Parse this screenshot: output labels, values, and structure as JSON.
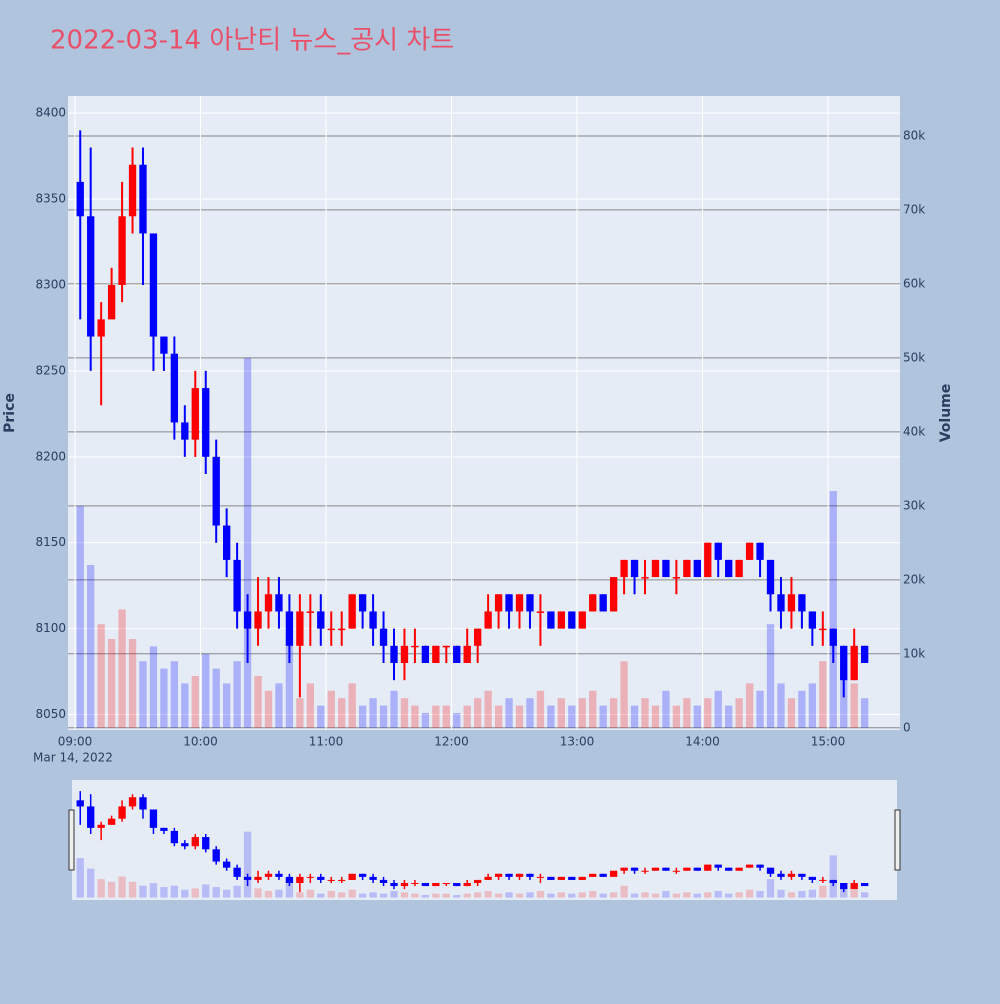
{
  "chart_data": {
    "type": "candlestick",
    "title": "2022-03-14 아난티 뉴스_공시 차트",
    "y_label": "Price",
    "y2_label": "Volume",
    "x_date_label": "Mar 14, 2022",
    "x": [
      "2022-03-14 09:00",
      "2022-03-14 09:05",
      "2022-03-14 09:10",
      "2022-03-14 09:15",
      "2022-03-14 09:20",
      "2022-03-14 09:25",
      "2022-03-14 09:30",
      "2022-03-14 09:35",
      "2022-03-14 09:40",
      "2022-03-14 09:45",
      "2022-03-14 09:50",
      "2022-03-14 09:55",
      "2022-03-14 10:00",
      "2022-03-14 10:05",
      "2022-03-14 10:10",
      "2022-03-14 10:15",
      "2022-03-14 10:20",
      "2022-03-14 10:25",
      "2022-03-14 10:30",
      "2022-03-14 10:35",
      "2022-03-14 10:40",
      "2022-03-14 10:45",
      "2022-03-14 10:50",
      "2022-03-14 10:55",
      "2022-03-14 11:00",
      "2022-03-14 11:05",
      "2022-03-14 11:10",
      "2022-03-14 11:15",
      "2022-03-14 11:20",
      "2022-03-14 11:25",
      "2022-03-14 11:30",
      "2022-03-14 11:35",
      "2022-03-14 11:40",
      "2022-03-14 11:45",
      "2022-03-14 11:50",
      "2022-03-14 11:55",
      "2022-03-14 12:00",
      "2022-03-14 12:05",
      "2022-03-14 12:10",
      "2022-03-14 12:15",
      "2022-03-14 12:20",
      "2022-03-14 12:25",
      "2022-03-14 12:30",
      "2022-03-14 12:35",
      "2022-03-14 12:40",
      "2022-03-14 12:45",
      "2022-03-14 12:50",
      "2022-03-14 12:55",
      "2022-03-14 13:00",
      "2022-03-14 13:05",
      "2022-03-14 13:10",
      "2022-03-14 13:15",
      "2022-03-14 13:20",
      "2022-03-14 13:25",
      "2022-03-14 13:30",
      "2022-03-14 13:35",
      "2022-03-14 13:40",
      "2022-03-14 13:45",
      "2022-03-14 13:50",
      "2022-03-14 13:55",
      "2022-03-14 14:00",
      "2022-03-14 14:05",
      "2022-03-14 14:10",
      "2022-03-14 14:15",
      "2022-03-14 14:20",
      "2022-03-14 14:25",
      "2022-03-14 14:30",
      "2022-03-14 14:35",
      "2022-03-14 14:40",
      "2022-03-14 14:45",
      "2022-03-14 14:50",
      "2022-03-14 14:55",
      "2022-03-14 15:00",
      "2022-03-14 15:05",
      "2022-03-14 15:10",
      "2022-03-14 15:15"
    ],
    "open": [
      8360,
      8340,
      8270,
      8280,
      8300,
      8340,
      8370,
      8330,
      8270,
      8260,
      8220,
      8210,
      8240,
      8200,
      8160,
      8140,
      8110,
      8100,
      8110,
      8120,
      8110,
      8090,
      8110,
      8110,
      8100,
      8100,
      8100,
      8120,
      8110,
      8100,
      8090,
      8080,
      8090,
      8090,
      8080,
      8090,
      8090,
      8080,
      8090,
      8100,
      8110,
      8120,
      8110,
      8120,
      8110,
      8110,
      8100,
      8110,
      8100,
      8110,
      8120,
      8110,
      8130,
      8140,
      8130,
      8130,
      8140,
      8130,
      8130,
      8140,
      8130,
      8150,
      8140,
      8130,
      8140,
      8150,
      8140,
      8120,
      8110,
      8120,
      8110,
      8100,
      8100,
      8090,
      8070,
      8090
    ],
    "high": [
      8390,
      8380,
      8290,
      8310,
      8360,
      8380,
      8380,
      8330,
      8270,
      8270,
      8230,
      8250,
      8250,
      8210,
      8170,
      8150,
      8120,
      8130,
      8130,
      8130,
      8120,
      8120,
      8120,
      8120,
      8110,
      8110,
      8120,
      8120,
      8120,
      8110,
      8100,
      8100,
      8100,
      8090,
      8090,
      8090,
      8090,
      8100,
      8100,
      8120,
      8120,
      8120,
      8120,
      8120,
      8120,
      8110,
      8110,
      8110,
      8110,
      8120,
      8120,
      8130,
      8140,
      8140,
      8140,
      8140,
      8140,
      8140,
      8140,
      8140,
      8150,
      8150,
      8140,
      8140,
      8150,
      8150,
      8140,
      8130,
      8130,
      8120,
      8110,
      8110,
      8100,
      8090,
      8100,
      8090
    ],
    "low": [
      8280,
      8250,
      8230,
      8280,
      8290,
      8330,
      8300,
      8250,
      8250,
      8210,
      8200,
      8200,
      8190,
      8150,
      8130,
      8100,
      8080,
      8090,
      8100,
      8100,
      8080,
      8060,
      8090,
      8090,
      8090,
      8090,
      8100,
      8100,
      8090,
      8080,
      8070,
      8070,
      8080,
      8080,
      8080,
      8080,
      8080,
      8080,
      8080,
      8100,
      8100,
      8100,
      8100,
      8100,
      8090,
      8100,
      8100,
      8100,
      8100,
      8110,
      8110,
      8110,
      8120,
      8120,
      8120,
      8130,
      8130,
      8120,
      8130,
      8130,
      8130,
      8130,
      8130,
      8130,
      8140,
      8130,
      8110,
      8100,
      8100,
      8100,
      8090,
      8090,
      8080,
      8060,
      8070,
      8080
    ],
    "close": [
      8340,
      8270,
      8280,
      8300,
      8340,
      8370,
      8330,
      8270,
      8260,
      8220,
      8210,
      8240,
      8200,
      8160,
      8140,
      8110,
      8100,
      8110,
      8120,
      8110,
      8090,
      8110,
      8110,
      8100,
      8100,
      8100,
      8120,
      8110,
      8100,
      8090,
      8080,
      8090,
      8090,
      8080,
      8090,
      8090,
      8080,
      8090,
      8100,
      8110,
      8120,
      8110,
      8120,
      8110,
      8110,
      8100,
      8110,
      8100,
      8110,
      8120,
      8110,
      8130,
      8140,
      8130,
      8130,
      8140,
      8130,
      8130,
      8140,
      8130,
      8150,
      8140,
      8130,
      8140,
      8150,
      8140,
      8120,
      8110,
      8120,
      8110,
      8100,
      8100,
      8090,
      8070,
      8090,
      8080
    ],
    "volume": [
      30000,
      22000,
      14000,
      12000,
      16000,
      12000,
      9000,
      11000,
      8000,
      9000,
      6000,
      7000,
      10000,
      8000,
      6000,
      9000,
      50000,
      7000,
      5000,
      6000,
      12000,
      4000,
      6000,
      3000,
      5000,
      4000,
      6000,
      3000,
      4000,
      3000,
      5000,
      4000,
      3000,
      2000,
      3000,
      3000,
      2000,
      3000,
      4000,
      5000,
      3000,
      4000,
      3000,
      4000,
      5000,
      3000,
      4000,
      3000,
      4000,
      5000,
      3000,
      4000,
      9000,
      3000,
      4000,
      3000,
      5000,
      3000,
      4000,
      3000,
      4000,
      5000,
      3000,
      4000,
      6000,
      5000,
      14000,
      6000,
      4000,
      5000,
      6000,
      9000,
      32000,
      8000,
      6000,
      4000
    ],
    "up_color": "#ff0000",
    "down_color": "#0000ff",
    "xlim": [
      "2022-03-14 08:56:39",
      "2022-03-14 15:34:24"
    ],
    "xticks": [
      {
        "value": "2022-03-14 09:00",
        "label": "09:00"
      },
      {
        "value": "2022-03-14 10:00",
        "label": "10:00"
      },
      {
        "value": "2022-03-14 11:00",
        "label": "11:00"
      },
      {
        "value": "2022-03-14 12:00",
        "label": "12:00"
      },
      {
        "value": "2022-03-14 13:00",
        "label": "13:00"
      },
      {
        "value": "2022-03-14 14:00",
        "label": "14:00"
      },
      {
        "value": "2022-03-14 15:00",
        "label": "15:00"
      }
    ],
    "ylim": [
      8041,
      8410
    ],
    "yticks": [
      8050,
      8100,
      8150,
      8200,
      8250,
      8300,
      8350,
      8400
    ],
    "y2lim": [
      -300,
      85400
    ],
    "y2ticks": [
      0,
      {
        "value": 10000,
        "label": "10k"
      },
      {
        "value": 20000,
        "label": "20k"
      },
      {
        "value": 30000,
        "label": "30k"
      },
      {
        "value": 40000,
        "label": "40k"
      },
      {
        "value": 50000,
        "label": "50k"
      },
      {
        "value": 60000,
        "label": "60k"
      },
      {
        "value": 70000,
        "label": "70k"
      },
      {
        "value": 80000,
        "label": "80k"
      }
    ],
    "grid": true,
    "rangeslider": true
  }
}
